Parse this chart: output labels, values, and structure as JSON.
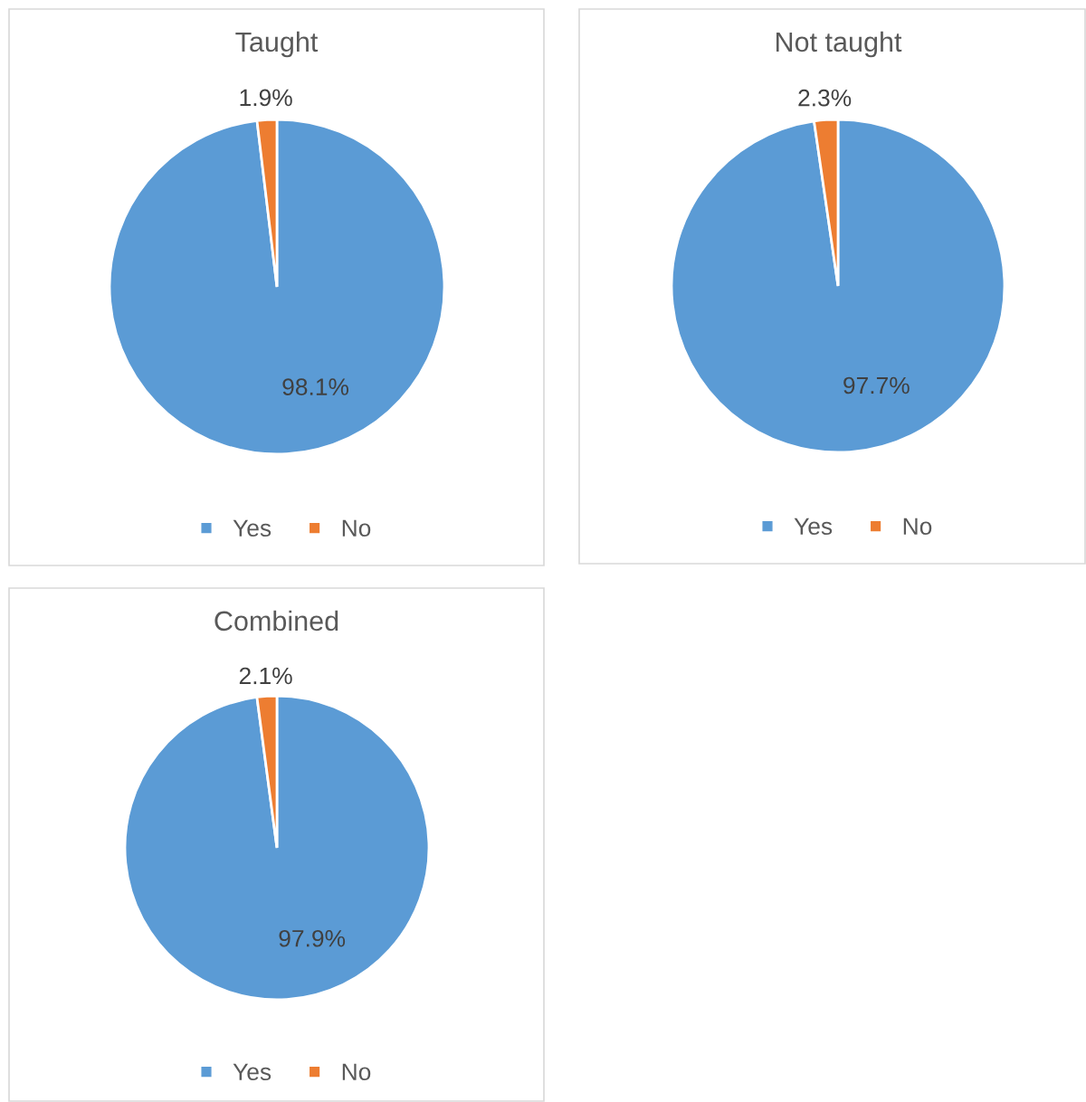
{
  "chart_data": [
    {
      "type": "pie",
      "title": "Taught",
      "categories": [
        "Yes",
        "No"
      ],
      "values": [
        98.1,
        1.9
      ],
      "colors": [
        "#5b9bd5",
        "#ed7d31"
      ],
      "value_labels": [
        "98.1%",
        "1.9%"
      ],
      "legend": "bottom"
    },
    {
      "type": "pie",
      "title": "Not taught",
      "categories": [
        "Yes",
        "No"
      ],
      "values": [
        97.7,
        2.3
      ],
      "colors": [
        "#5b9bd5",
        "#ed7d31"
      ],
      "value_labels": [
        "97.7%",
        "2.3%"
      ],
      "legend": "bottom"
    },
    {
      "type": "pie",
      "title": "Combined",
      "categories": [
        "Yes",
        "No"
      ],
      "values": [
        97.9,
        2.1
      ],
      "colors": [
        "#5b9bd5",
        "#ed7d31"
      ],
      "value_labels": [
        "97.9%",
        "2.1%"
      ],
      "legend": "bottom"
    }
  ]
}
